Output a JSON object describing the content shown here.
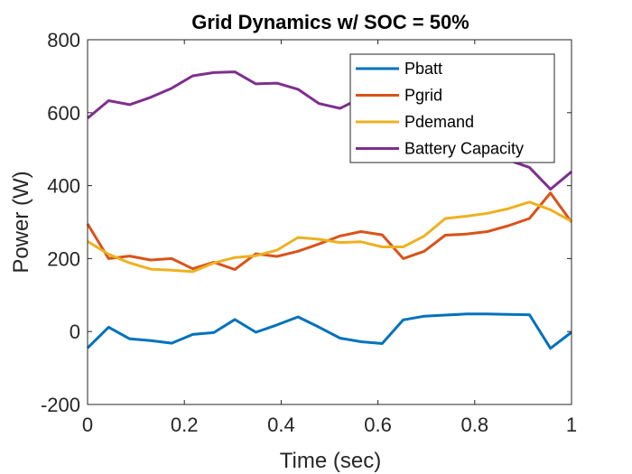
{
  "chart_data": {
    "type": "line",
    "title": "Grid Dynamics w/ SOC = 50%",
    "xlabel": "Time (sec)",
    "ylabel": "Power (W)",
    "xlim": [
      0,
      1
    ],
    "ylim": [
      -200,
      800
    ],
    "xticks": [
      0,
      0.2,
      0.4,
      0.6,
      0.8,
      1
    ],
    "xtick_labels": [
      "0",
      "0.2",
      "0.4",
      "0.6",
      "0.8",
      "1"
    ],
    "yticks": [
      -200,
      0,
      200,
      400,
      600,
      800
    ],
    "ytick_labels": [
      "-200",
      "0",
      "200",
      "400",
      "600",
      "800"
    ],
    "grid": false,
    "legend_position": "top-right",
    "x": [
      0,
      0.0435,
      0.087,
      0.1304,
      0.1739,
      0.2174,
      0.2609,
      0.3043,
      0.3478,
      0.3913,
      0.4348,
      0.4783,
      0.5217,
      0.5652,
      0.6087,
      0.6522,
      0.6957,
      0.7391,
      0.7826,
      0.8261,
      0.8696,
      0.913,
      0.9565,
      1
    ],
    "series": [
      {
        "name": "Pbatt",
        "color": "#0072BD",
        "values": [
          -45,
          12,
          -20,
          -25,
          -32,
          -8,
          -3,
          33,
          -2,
          18,
          40,
          12,
          -18,
          -28,
          -33,
          32,
          42,
          45,
          48,
          48,
          47,
          46,
          -46,
          -2
        ]
      },
      {
        "name": "Pgrid",
        "color": "#D95319",
        "values": [
          295,
          200,
          207,
          196,
          200,
          172,
          190,
          170,
          213,
          206,
          220,
          240,
          262,
          274,
          265,
          200,
          220,
          264,
          267,
          274,
          290,
          310,
          380,
          300
        ]
      },
      {
        "name": "Pdemand",
        "color": "#EDB120",
        "values": [
          247,
          212,
          188,
          171,
          168,
          164,
          188,
          203,
          208,
          223,
          258,
          253,
          244,
          246,
          232,
          232,
          262,
          310,
          316,
          324,
          337,
          355,
          334,
          302
        ]
      },
      {
        "name": "Battery Capacity",
        "color": "#7E2F8E",
        "values": [
          585,
          633,
          622,
          642,
          667,
          701,
          710,
          712,
          679,
          681,
          664,
          625,
          612,
          640,
          610,
          560,
          520,
          500,
          490,
          480,
          470,
          450,
          390,
          438
        ]
      }
    ]
  }
}
